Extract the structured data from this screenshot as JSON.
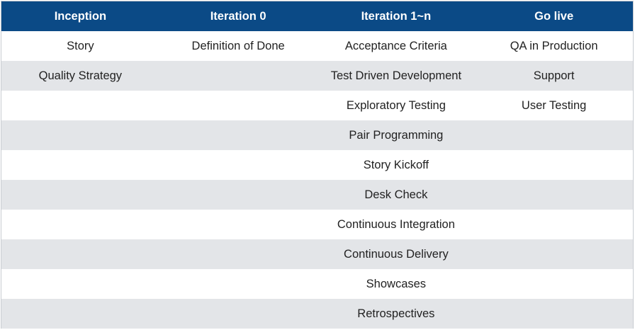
{
  "table": {
    "header": [
      "Inception",
      "Iteration 0",
      "Iteration 1~n",
      "Go live"
    ],
    "rows": [
      [
        "Story",
        "Definition of Done",
        "Acceptance Criteria",
        "QA in Production"
      ],
      [
        "Quality Strategy",
        null,
        "Test Driven Development",
        "Support"
      ],
      [
        null,
        null,
        "Exploratory Testing",
        "User Testing"
      ],
      [
        null,
        null,
        "Pair Programming",
        null
      ],
      [
        null,
        null,
        "Story Kickoff",
        null
      ],
      [
        null,
        null,
        "Desk Check",
        null
      ],
      [
        null,
        null,
        "Continuous Integration",
        null
      ],
      [
        null,
        null,
        "Continuous Delivery",
        null
      ],
      [
        null,
        null,
        "Showcases",
        null
      ],
      [
        null,
        null,
        "Retrospectives",
        null
      ]
    ]
  }
}
